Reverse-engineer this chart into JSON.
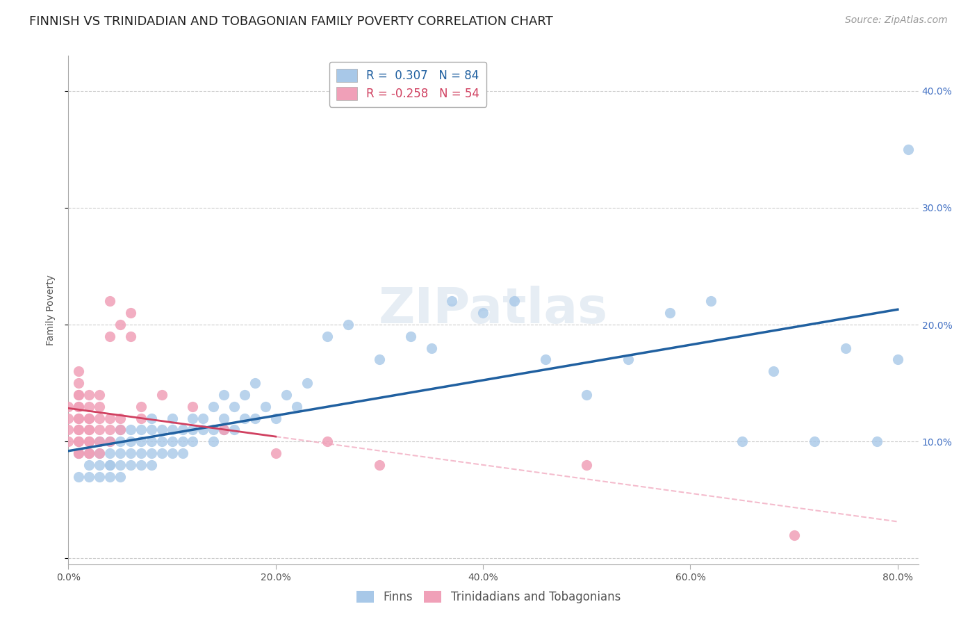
{
  "title": "FINNISH VS TRINIDADIAN AND TOBAGONIAN FAMILY POVERTY CORRELATION CHART",
  "source": "Source: ZipAtlas.com",
  "ylabel": "Family Poverty",
  "watermark": "ZIPatlas",
  "xlim": [
    0.0,
    0.82
  ],
  "ylim": [
    -0.005,
    0.43
  ],
  "xticks": [
    0.0,
    0.2,
    0.4,
    0.6,
    0.8
  ],
  "yticks": [
    0.0,
    0.1,
    0.2,
    0.3,
    0.4
  ],
  "xticklabels": [
    "0.0%",
    "20.0%",
    "40.0%",
    "60.0%",
    "80.0%"
  ],
  "yticklabels_right": [
    "",
    "10.0%",
    "20.0%",
    "30.0%",
    "40.0%"
  ],
  "blue_color": "#a8c8e8",
  "pink_color": "#f0a0b8",
  "blue_line_color": "#2060a0",
  "pink_line_color": "#d04060",
  "legend_blue_r": "0.307",
  "legend_blue_n": "84",
  "legend_pink_r": "-0.258",
  "legend_pink_n": "54",
  "legend_label_blue": "Finns",
  "legend_label_pink": "Trinidadians and Tobagonians",
  "blue_x": [
    0.01,
    0.01,
    0.02,
    0.02,
    0.02,
    0.03,
    0.03,
    0.03,
    0.03,
    0.04,
    0.04,
    0.04,
    0.04,
    0.04,
    0.05,
    0.05,
    0.05,
    0.05,
    0.05,
    0.06,
    0.06,
    0.06,
    0.06,
    0.07,
    0.07,
    0.07,
    0.07,
    0.08,
    0.08,
    0.08,
    0.08,
    0.08,
    0.09,
    0.09,
    0.09,
    0.1,
    0.1,
    0.1,
    0.1,
    0.11,
    0.11,
    0.11,
    0.12,
    0.12,
    0.12,
    0.13,
    0.13,
    0.14,
    0.14,
    0.14,
    0.15,
    0.15,
    0.15,
    0.16,
    0.16,
    0.17,
    0.17,
    0.18,
    0.18,
    0.19,
    0.2,
    0.21,
    0.22,
    0.23,
    0.25,
    0.27,
    0.3,
    0.33,
    0.35,
    0.37,
    0.4,
    0.43,
    0.46,
    0.5,
    0.54,
    0.58,
    0.62,
    0.65,
    0.68,
    0.72,
    0.75,
    0.78,
    0.8,
    0.81
  ],
  "blue_y": [
    0.07,
    0.09,
    0.07,
    0.08,
    0.09,
    0.07,
    0.08,
    0.09,
    0.1,
    0.07,
    0.08,
    0.08,
    0.09,
    0.1,
    0.07,
    0.08,
    0.09,
    0.1,
    0.11,
    0.08,
    0.09,
    0.1,
    0.11,
    0.08,
    0.09,
    0.1,
    0.11,
    0.08,
    0.09,
    0.1,
    0.11,
    0.12,
    0.09,
    0.1,
    0.11,
    0.09,
    0.1,
    0.11,
    0.12,
    0.09,
    0.1,
    0.11,
    0.1,
    0.11,
    0.12,
    0.11,
    0.12,
    0.1,
    0.11,
    0.13,
    0.11,
    0.12,
    0.14,
    0.11,
    0.13,
    0.12,
    0.14,
    0.12,
    0.15,
    0.13,
    0.12,
    0.14,
    0.13,
    0.15,
    0.19,
    0.2,
    0.17,
    0.19,
    0.18,
    0.22,
    0.21,
    0.22,
    0.17,
    0.14,
    0.17,
    0.21,
    0.22,
    0.1,
    0.16,
    0.1,
    0.18,
    0.1,
    0.17,
    0.35
  ],
  "pink_x": [
    0.0,
    0.0,
    0.0,
    0.0,
    0.01,
    0.01,
    0.01,
    0.01,
    0.01,
    0.01,
    0.01,
    0.01,
    0.01,
    0.01,
    0.01,
    0.01,
    0.01,
    0.01,
    0.02,
    0.02,
    0.02,
    0.02,
    0.02,
    0.02,
    0.02,
    0.02,
    0.02,
    0.02,
    0.03,
    0.03,
    0.03,
    0.03,
    0.03,
    0.03,
    0.04,
    0.04,
    0.04,
    0.04,
    0.04,
    0.05,
    0.05,
    0.05,
    0.06,
    0.06,
    0.07,
    0.07,
    0.09,
    0.12,
    0.15,
    0.2,
    0.25,
    0.3,
    0.5,
    0.7
  ],
  "pink_y": [
    0.1,
    0.11,
    0.12,
    0.13,
    0.09,
    0.1,
    0.11,
    0.12,
    0.13,
    0.14,
    0.15,
    0.16,
    0.09,
    0.1,
    0.11,
    0.12,
    0.13,
    0.14,
    0.09,
    0.1,
    0.11,
    0.12,
    0.13,
    0.14,
    0.09,
    0.1,
    0.11,
    0.12,
    0.09,
    0.1,
    0.11,
    0.12,
    0.13,
    0.14,
    0.1,
    0.11,
    0.12,
    0.19,
    0.22,
    0.11,
    0.12,
    0.2,
    0.19,
    0.21,
    0.12,
    0.13,
    0.14,
    0.13,
    0.11,
    0.09,
    0.1,
    0.08,
    0.08,
    0.02
  ],
  "background_color": "#ffffff",
  "grid_color": "#cccccc",
  "title_fontsize": 13,
  "source_fontsize": 10,
  "axis_label_fontsize": 10,
  "tick_fontsize": 10,
  "watermark_fontsize": 52,
  "watermark_color": "#c8d8e8",
  "watermark_alpha": 0.45
}
